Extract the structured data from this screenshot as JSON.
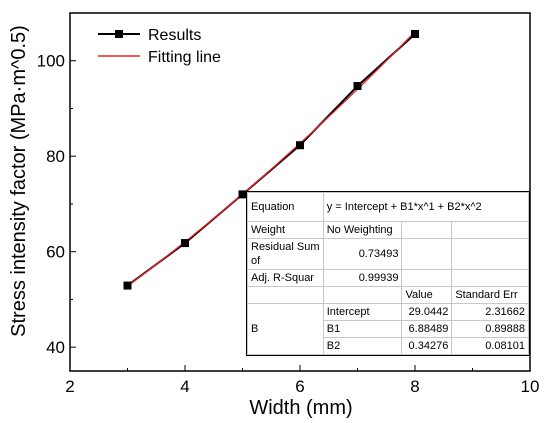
{
  "chart_data": {
    "type": "line",
    "xlabel": "Width (mm)",
    "ylabel": "Stress intensity factor (MPa·m^0.5)",
    "xlim": [
      2,
      10
    ],
    "ylim": [
      35,
      110
    ],
    "x_ticks": [
      "2",
      "4",
      "6",
      "8",
      "10"
    ],
    "y_ticks": [
      "40",
      "60",
      "80",
      "100"
    ],
    "grid": false,
    "legend_position": "top-left",
    "series": [
      {
        "name": "Results",
        "color": "#000000",
        "marker": "square",
        "x": [
          3,
          4,
          5,
          6,
          7,
          8
        ],
        "y": [
          52.9,
          61.8,
          72.0,
          82.3,
          94.7,
          105.6
        ]
      },
      {
        "name": "Fitting line",
        "color": "#e8232a",
        "marker": "none",
        "fit": {
          "intercept": 29.0442,
          "b1": 6.88489,
          "b2": 0.34276
        },
        "x_range": [
          3,
          8
        ]
      }
    ]
  },
  "fit_table": {
    "equation_label": "Equation",
    "equation": "y = Intercept + B1*x^1 + B2*x^2",
    "weight_label": "Weight",
    "weight_value": "No Weighting",
    "rss_label": "Residual Sum of",
    "rss_value": "0.73493",
    "adjr_label": "Adj. R-Squar",
    "adjr_value": "0.99939",
    "col_value": "Value",
    "col_stderr": "Standard Err",
    "group_label": "B",
    "params": [
      {
        "name": "Intercept",
        "value": "29.0442",
        "stderr": "2.31662"
      },
      {
        "name": "B1",
        "value": "6.88489",
        "stderr": "0.89888"
      },
      {
        "name": "B2",
        "value": "0.34276",
        "stderr": "0.08101"
      }
    ]
  }
}
